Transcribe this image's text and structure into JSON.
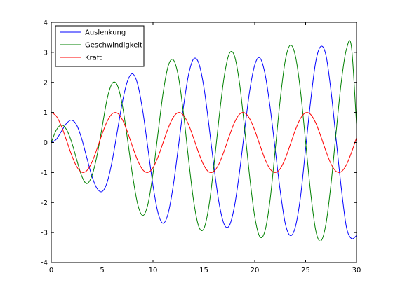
{
  "chart_data": {
    "type": "line",
    "title": "",
    "xlabel": "",
    "ylabel": "",
    "xlim": [
      0,
      30
    ],
    "ylim": [
      -4,
      4
    ],
    "xticks": [
      0,
      5,
      10,
      15,
      20,
      25,
      30
    ],
    "yticks": [
      -4,
      -3,
      -2,
      -1,
      0,
      1,
      2,
      3,
      4
    ],
    "grid": false,
    "legend_position": "top-left",
    "series": [
      {
        "name": "Auslenkung",
        "color": "#0000ff",
        "x": [
          0,
          0.5,
          1,
          1.5,
          2,
          2.5,
          3,
          3.5,
          4,
          4.5,
          5,
          5.5,
          6,
          6.5,
          7,
          7.5,
          8,
          8.5,
          9,
          9.5,
          10,
          10.5,
          11,
          11.5,
          12,
          12.5,
          13,
          13.5,
          14,
          14.5,
          15,
          15.5,
          16,
          16.5,
          17,
          17.5,
          18,
          18.5,
          19,
          19.5,
          20,
          20.5,
          21,
          21.5,
          22,
          22.5,
          23,
          23.5,
          24,
          24.5,
          25,
          25.5,
          26,
          26.5,
          27,
          27.5,
          28,
          28.5,
          29,
          29.5,
          30
        ],
        "y": [
          0,
          0.108,
          0.373,
          0.637,
          0.744,
          0.58,
          0.12,
          -0.513,
          -1.125,
          -1.531,
          -1.633,
          -1.323,
          -0.596,
          0.384,
          1.359,
          2.05,
          2.284,
          1.931,
          1.04,
          -0.188,
          -1.432,
          -2.35,
          -2.691,
          -2.351,
          -1.419,
          -0.132,
          1.201,
          2.262,
          2.786,
          2.637,
          1.844,
          0.571,
          -0.838,
          -2.031,
          -2.73,
          -2.77,
          -2.14,
          -0.99,
          0.4,
          1.71,
          2.58,
          2.82,
          2.3,
          1.2,
          -0.2,
          -1.6,
          -2.7,
          -3.1,
          -2.8,
          -1.8,
          -0.2,
          1.4,
          2.7,
          3.2,
          2.9,
          1.7,
          0.1,
          -1.5,
          -2.8,
          -3.2,
          -3.1
        ]
      },
      {
        "name": "Geschwindigkeit",
        "color": "#008000",
        "x": [
          0,
          0.5,
          1,
          1.5,
          2,
          2.5,
          3,
          3.5,
          4,
          4.5,
          5,
          5.5,
          6,
          6.5,
          7,
          7.5,
          8,
          8.5,
          9,
          9.5,
          10,
          10.5,
          11,
          11.5,
          12,
          12.5,
          13,
          13.5,
          14,
          14.5,
          15,
          15.5,
          16,
          16.5,
          17,
          17.5,
          18,
          18.5,
          19,
          19.5,
          20,
          20.5,
          21,
          21.5,
          22,
          22.5,
          23,
          23.5,
          24,
          24.5,
          25,
          25.5,
          26,
          26.5,
          27,
          27.5,
          28,
          28.5,
          29,
          29.5,
          30
        ],
        "y": [
          0,
          0.416,
          0.582,
          0.433,
          0.018,
          -0.567,
          -1.121,
          -1.369,
          -1.107,
          -0.432,
          0.511,
          1.46,
          1.97,
          1.9,
          1.22,
          0.1,
          -1.11,
          -2.06,
          -2.43,
          -2.06,
          -1.04,
          0.33,
          1.66,
          2.55,
          2.75,
          2.19,
          0.96,
          -0.57,
          -1.96,
          -2.8,
          -2.87,
          -2.11,
          -0.74,
          0.85,
          2.2,
          2.96,
          2.89,
          1.98,
          0.48,
          -1.14,
          -2.47,
          -3.14,
          -2.95,
          -1.93,
          -0.29,
          1.42,
          2.73,
          3.24,
          2.87,
          1.7,
          0.02,
          -1.69,
          -2.94,
          -3.28,
          -2.71,
          -1.37,
          0.35,
          2.0,
          3.09,
          3.19,
          0.6
        ]
      },
      {
        "name": "Kraft",
        "color": "#ff0000",
        "x": [
          0,
          0.5,
          1,
          1.5,
          2,
          2.5,
          3,
          3.5,
          4,
          4.5,
          5,
          5.5,
          6,
          6.5,
          7,
          7.5,
          8,
          8.5,
          9,
          9.5,
          10,
          10.5,
          11,
          11.5,
          12,
          12.5,
          13,
          13.5,
          14,
          14.5,
          15,
          15.5,
          16,
          16.5,
          17,
          17.5,
          18,
          18.5,
          19,
          19.5,
          20,
          20.5,
          21,
          21.5,
          22,
          22.5,
          23,
          23.5,
          24,
          24.5,
          25,
          25.5,
          26,
          26.5,
          27,
          27.5,
          28,
          28.5,
          29,
          29.5,
          30
        ],
        "y": [
          1,
          0.878,
          0.54,
          0.071,
          -0.416,
          -0.801,
          -0.99,
          -0.936,
          -0.654,
          -0.211,
          0.284,
          0.709,
          0.96,
          0.977,
          0.754,
          0.347,
          -0.146,
          -0.602,
          -0.911,
          -0.997,
          -0.839,
          -0.476,
          0.004,
          0.483,
          0.844,
          0.998,
          0.907,
          0.594,
          0.137,
          -0.355,
          -0.76,
          -0.984,
          -0.958,
          -0.701,
          -0.275,
          0.217,
          0.66,
          0.94,
          0.988,
          0.793,
          0.408,
          -0.08,
          -0.547,
          -0.882,
          -1.0,
          -0.875,
          -0.533,
          -0.062,
          0.424,
          0.805,
          0.991,
          0.933,
          0.647,
          0.2,
          -0.292,
          -0.716,
          -0.962,
          -0.975,
          -0.748,
          -0.339,
          0.154
        ]
      }
    ]
  }
}
